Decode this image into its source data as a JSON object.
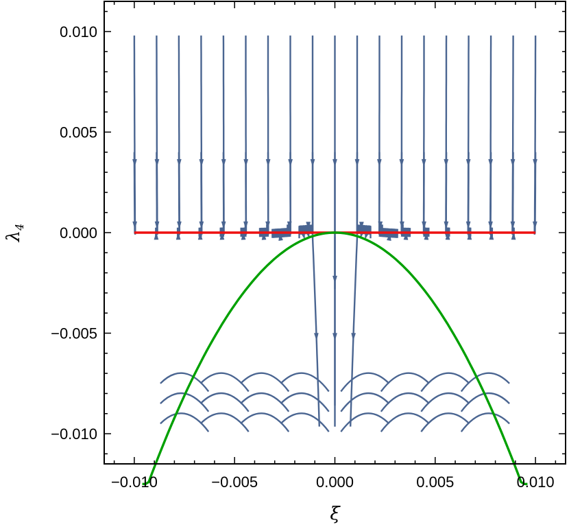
{
  "chart_data": {
    "type": "stream",
    "xlabel": "ξ",
    "ylabel_main": "λ",
    "ylabel_sub": "4",
    "xlim": [
      -0.0115,
      0.0115
    ],
    "ylim": [
      -0.0115,
      0.0115
    ],
    "x_ticks": [
      -0.01,
      -0.005,
      0.0,
      0.005,
      0.01
    ],
    "y_ticks": [
      -0.01,
      -0.005,
      0.0,
      0.005,
      0.01
    ],
    "x_tick_labels": [
      "−0.010",
      "−0.005",
      "0.000",
      "0.005",
      "0.010"
    ],
    "y_tick_labels": [
      "−0.010",
      "−0.005",
      "0.000",
      "0.005",
      "0.010"
    ],
    "stream_region": {
      "x": [
        -0.01,
        0.01
      ],
      "y": [
        -0.01,
        0.01
      ]
    },
    "lines": [
      {
        "name": "",
        "color": "#ee1111",
        "kind": "horizontal",
        "y": 0.0,
        "x_range": [
          -0.01,
          0.01
        ],
        "points": [
          [
            -0.01,
            0.0
          ],
          [
            0.01,
            0.0
          ]
        ]
      },
      {
        "name": "",
        "color": "#00a000",
        "kind": "parabola",
        "formula": "lambda4 = -xi^2 * 144",
        "points": [
          [
            -0.0096,
            -0.0133
          ],
          [
            -0.008,
            -0.0092
          ],
          [
            -0.006,
            -0.0052
          ],
          [
            -0.004,
            -0.0023
          ],
          [
            -0.002,
            -0.00058
          ],
          [
            0.0,
            0.0
          ],
          [
            0.002,
            -0.00058
          ],
          [
            0.004,
            -0.0023
          ],
          [
            0.006,
            -0.0052
          ],
          [
            0.008,
            -0.0092
          ],
          [
            0.0096,
            -0.0133
          ]
        ]
      }
    ],
    "streamline_color": "#4a6591",
    "grid": false
  }
}
